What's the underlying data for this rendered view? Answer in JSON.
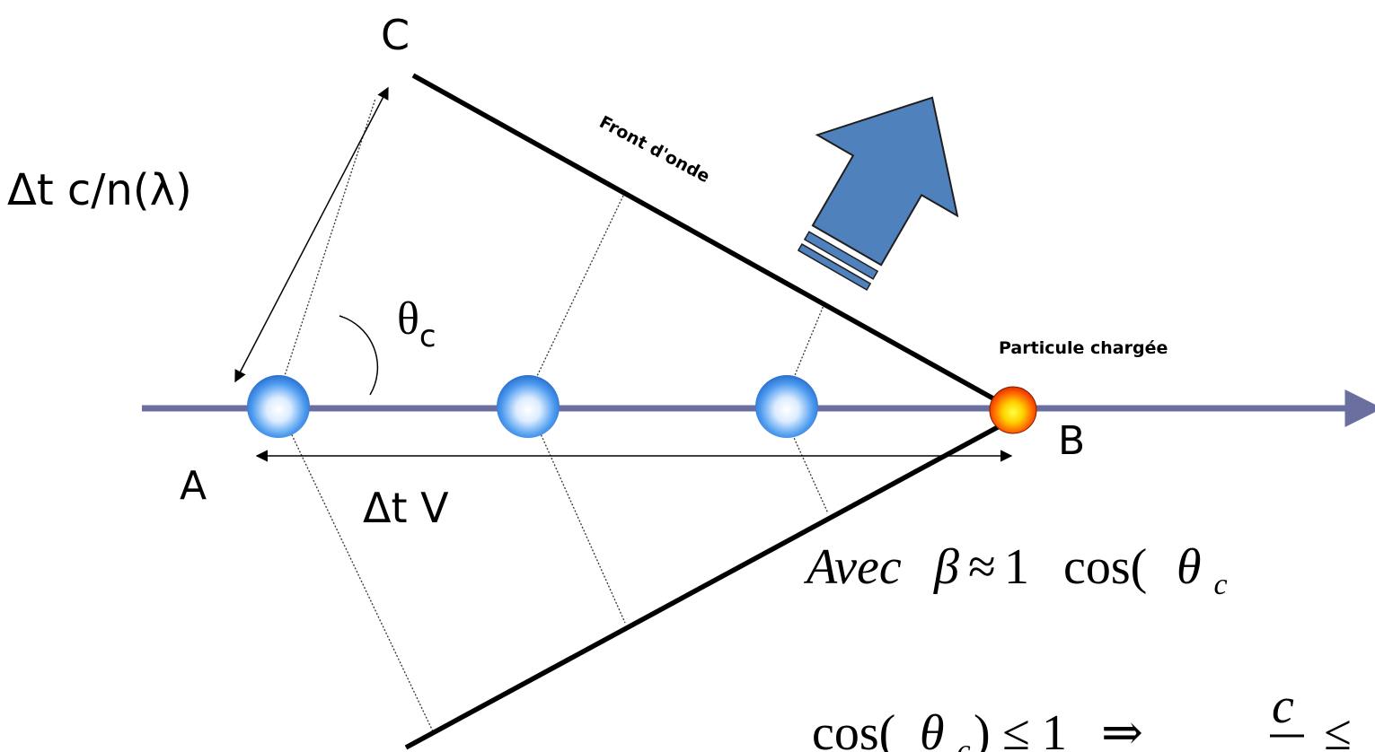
{
  "points": {
    "A": "A",
    "B": "B",
    "C": "C"
  },
  "labels": {
    "light_path": "Δt c/n(λ)",
    "angle_symbol": "θ",
    "angle_subscript": "c",
    "particle_path": "Δt V",
    "wavefront": "Front d'onde",
    "particle": "Particule chargée"
  },
  "equations": {
    "line1_word": "Avec",
    "line1_beta": "β",
    "line1_approx": "≈",
    "line1_one": "1",
    "line1_cos": "cos(",
    "line1_theta": "θ",
    "line1_sub": "c",
    "line2_cos": "cos(",
    "line2_theta": "θ",
    "line2_sub": "c",
    "line2_close": ")",
    "line2_leq": "≤",
    "line2_one": "1",
    "line2_implies": "⇒",
    "line2_c": "c",
    "line2_leq2": "≤"
  },
  "colors": {
    "axis": "#6b6fa0",
    "wavefront_line": "#000000",
    "arrow_fill": "#4f81bd",
    "arrow_stroke": "#1f1f1f",
    "photon_sphere": "#4f9df0",
    "particle_sphere": "#ff4a00"
  }
}
